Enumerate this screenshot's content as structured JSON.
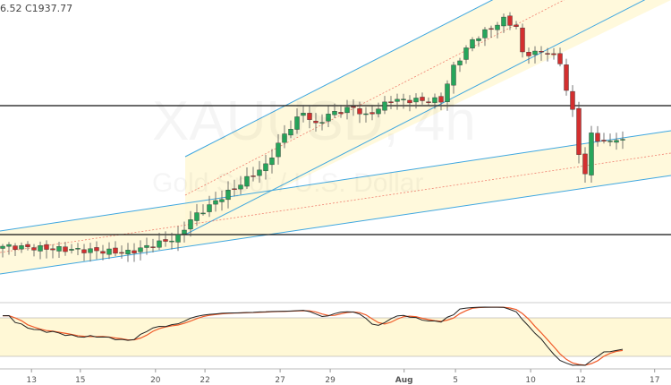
{
  "header": {
    "ohlc_text": "6.52  C1937.77"
  },
  "watermark": {
    "symbol": "XAUUSD, 4h",
    "name": "Gold Spot / U.S. Dollar"
  },
  "chart_data": {
    "type": "candlestick",
    "title": "XAUUSD, 4h",
    "last_close": 1937.77,
    "price_range": [
      1860,
      2000
    ],
    "candle_count": 100,
    "close_anchors": [
      [
        0,
        1890
      ],
      [
        20,
        1887.2
      ],
      [
        28,
        1894
      ],
      [
        30,
        1902
      ],
      [
        34,
        1910
      ],
      [
        37,
        1916
      ],
      [
        42,
        1926
      ],
      [
        45,
        1940
      ],
      [
        48,
        1950
      ],
      [
        50,
        1944
      ],
      [
        52,
        1948.8
      ],
      [
        56,
        1952
      ],
      [
        58,
        1948
      ],
      [
        62,
        1955.2
      ],
      [
        70,
        1955.2
      ],
      [
        72,
        1970
      ],
      [
        75,
        1982
      ],
      [
        80,
        1991.2
      ],
      [
        82,
        1988
      ],
      [
        83,
        1976
      ],
      [
        87,
        1976.8
      ],
      [
        89,
        1972
      ],
      [
        90,
        1960
      ],
      [
        91,
        1950
      ],
      [
        92,
        1932
      ],
      [
        93,
        1922
      ],
      [
        94,
        1940
      ],
      [
        96,
        1936
      ],
      [
        99,
        1939.2
      ]
    ],
    "horizontal_levels": [
      1952.8,
      1895.2
    ],
    "x_ticks": [
      {
        "label": "13",
        "index": 4.6
      },
      {
        "label": "15",
        "index": 12.4
      },
      {
        "label": "20",
        "index": 24.4
      },
      {
        "label": "22",
        "index": 32.3
      },
      {
        "label": "27",
        "index": 44.3
      },
      {
        "label": "29",
        "index": 52.3
      },
      {
        "label": "Aug",
        "index": 64.1
      },
      {
        "label": "5",
        "index": 72.3
      },
      {
        "label": "10",
        "index": 84.3
      },
      {
        "label": "12",
        "index": 92.3
      },
      {
        "label": "17",
        "index": 104.1
      }
    ],
    "colors": {
      "up": "#26a65b",
      "down": "#d32f2f",
      "channel": "#3fa7e0",
      "fill": "#fff8d6",
      "stoch_k": "#222222",
      "stoch_d": "#f05a28"
    },
    "oscillator": {
      "type": "stochastic",
      "period": 14,
      "smooth": 3,
      "overbought": 80,
      "oversold": 20
    }
  }
}
